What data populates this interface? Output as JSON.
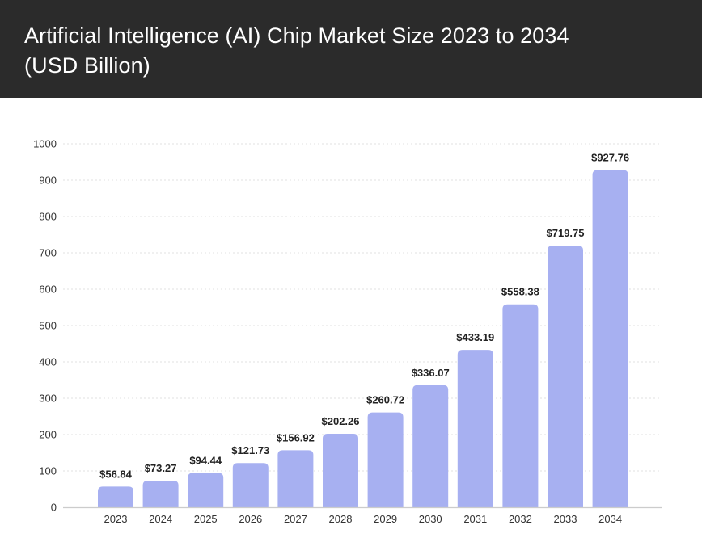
{
  "chart_data": {
    "type": "bar",
    "title": "Artificial Intelligence (AI) Chip Market Size 2023 to 2034 (USD Billion)",
    "title_lines": [
      "Artificial Intelligence (AI) Chip Market Size 2023 to 2034",
      "(USD Billion)"
    ],
    "xlabel": "",
    "ylabel": "",
    "categories": [
      "2023",
      "2024",
      "2025",
      "2026",
      "2027",
      "2028",
      "2029",
      "2030",
      "2031",
      "2032",
      "2033",
      "2034"
    ],
    "values": [
      56.84,
      73.27,
      94.44,
      121.73,
      156.92,
      202.26,
      260.72,
      336.07,
      433.19,
      558.38,
      719.75,
      927.76
    ],
    "data_labels": [
      "$56.84",
      "$73.27",
      "$94.44",
      "$121.73",
      "$156.92",
      "$202.26",
      "$260.72",
      "$336.07",
      "$433.19",
      "$558.38",
      "$719.75",
      "$927.76"
    ],
    "ylim": [
      0,
      1000
    ],
    "yticks": [
      0,
      100,
      200,
      300,
      400,
      500,
      600,
      700,
      800,
      900,
      1000
    ],
    "grid": "horizontal-dotted",
    "legend": "none",
    "colors": {
      "bar": "#a7b0f1",
      "header_bg": "#2b2b2b",
      "header_text": "#ffffff",
      "grid": "#e2e2e2",
      "axis": "#cccccc"
    }
  }
}
